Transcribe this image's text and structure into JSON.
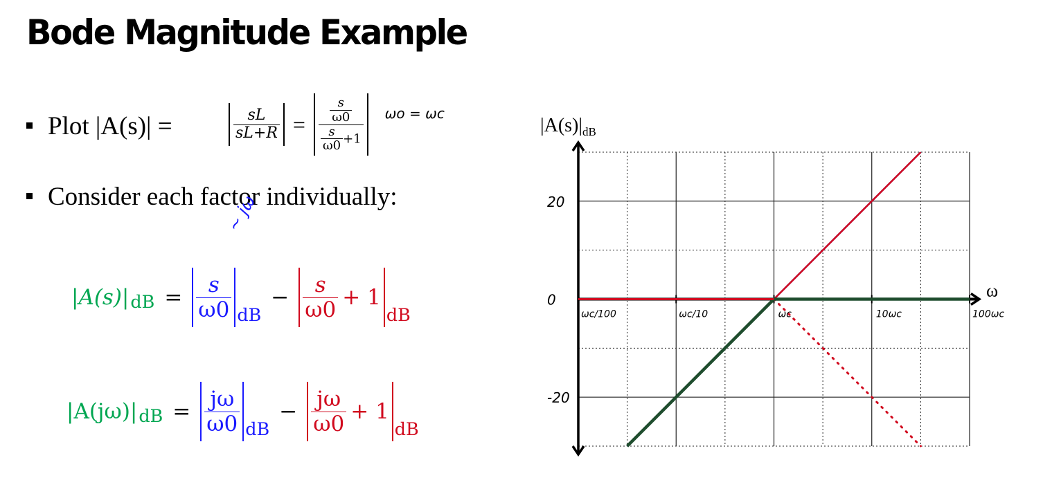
{
  "slide": {
    "title": "Bode Magnitude Example",
    "bullet1": "Plot |A(s)| =",
    "bullet2": "Consider each factor individually:",
    "eq1": {
      "frac1_num": "sL",
      "frac1_den": "sL+R",
      "frac2_num_num": "s",
      "frac2_num_den": "ω0",
      "frac2_den_num": "s",
      "frac2_den_den": "ω0",
      "frac2_den_tail": "+1",
      "note": "ωo = ωc"
    },
    "eq_s": {
      "lhs": "|A(s)|",
      "lhs_sub": "dB",
      "t1_num": "s",
      "t1_den": "ω0",
      "t1_sub": "dB",
      "t2_num": "s",
      "t2_den": "ω0",
      "t2_tail": "+ 1",
      "t2_sub": "dB",
      "handwritten": "~ jω"
    },
    "eq_jw": {
      "lhs": "|A(jω)|",
      "lhs_sub": "dB",
      "t1_num": "jω",
      "t1_den": "ω0",
      "t1_sub": "dB",
      "t2_num": "jω",
      "t2_den": "ω0",
      "t2_tail": "+ 1",
      "t2_sub": "dB"
    }
  },
  "colors": {
    "green": "#00a651",
    "blue": "#1a1aff",
    "red": "#d10a1e",
    "dark_green": "#1f4d2e",
    "grid": "#000000"
  },
  "chart_data": {
    "type": "line",
    "ylabel": "|A(s)|",
    "ylabel_sub": "dB",
    "xlabel": "ω",
    "xscale": "log",
    "x_ticks": [
      {
        "value": 0.01,
        "label": "ωc/100"
      },
      {
        "value": 0.1,
        "label": "ωc/10"
      },
      {
        "value": 1,
        "label": "ωc"
      },
      {
        "value": 10,
        "label": "10ωc"
      },
      {
        "value": 100,
        "label": "100ωc"
      }
    ],
    "y_ticks": [
      {
        "value": 20,
        "label": "20"
      },
      {
        "value": 0,
        "label": "0"
      },
      {
        "value": -20,
        "label": "-20"
      }
    ],
    "xlim": [
      0.01,
      100
    ],
    "ylim": [
      -30,
      30
    ],
    "grid": true,
    "series": [
      {
        "key": "blue_rising",
        "style": "solid",
        "color": "#1a1aff",
        "x": [
          0.031623,
          1,
          31.623
        ],
        "y": [
          -30,
          0,
          30
        ]
      },
      {
        "key": "red_pole",
        "style": "solid",
        "color": "#d10a1e",
        "x": [
          0.01,
          1,
          31.623
        ],
        "y": [
          0,
          0,
          30
        ]
      },
      {
        "key": "red_pole_dotted",
        "style": "dotted",
        "color": "#d10a1e",
        "x": [
          1,
          31.623
        ],
        "y": [
          0,
          -30
        ]
      },
      {
        "key": "total_dark_green",
        "style": "solid-thick",
        "color": "#1f4d2e",
        "x": [
          0.031623,
          1,
          100
        ],
        "y": [
          -30,
          0,
          0
        ]
      }
    ]
  }
}
